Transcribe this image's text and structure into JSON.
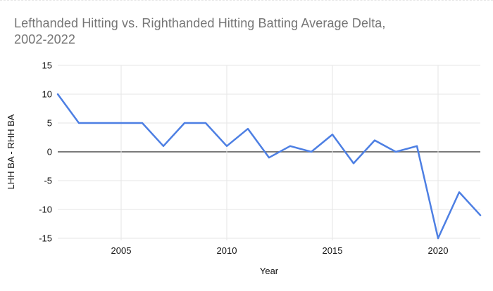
{
  "chart": {
    "title_line1": "Lefthanded Hitting vs. Righthanded Hitting Batting Average Delta,",
    "title_line2": "2002-2022",
    "title_color": "#757575",
    "xlabel": "Year",
    "ylabel": "LHH BA - RHH BA"
  },
  "chart_data": {
    "type": "line",
    "title": "Lefthanded Hitting vs. Righthanded Hitting Batting Average Delta, 2002-2022",
    "xlabel": "Year",
    "ylabel": "LHH BA - RHH BA",
    "x": [
      2002,
      2003,
      2004,
      2005,
      2006,
      2007,
      2008,
      2009,
      2010,
      2011,
      2012,
      2013,
      2014,
      2015,
      2016,
      2017,
      2018,
      2019,
      2020,
      2021,
      2022
    ],
    "values": [
      10,
      5,
      5,
      5,
      5,
      1,
      5,
      5,
      1,
      4,
      -1,
      1,
      0,
      3,
      -2,
      2,
      0,
      1,
      -15,
      -7,
      -11
    ],
    "x_ticks": [
      2005,
      2010,
      2015,
      2020
    ],
    "y_ticks": [
      15,
      10,
      5,
      0,
      -5,
      -10,
      -15
    ],
    "xlim": [
      2002,
      2022
    ],
    "ylim": [
      -15,
      15
    ],
    "grid": true,
    "legend": false,
    "line_color": "#4d7fe3",
    "zero_line_color": "#7a7a7a",
    "grid_color": "#e6e6e6",
    "tick_label_color": "#111111",
    "axis_title_color": "#111111"
  }
}
